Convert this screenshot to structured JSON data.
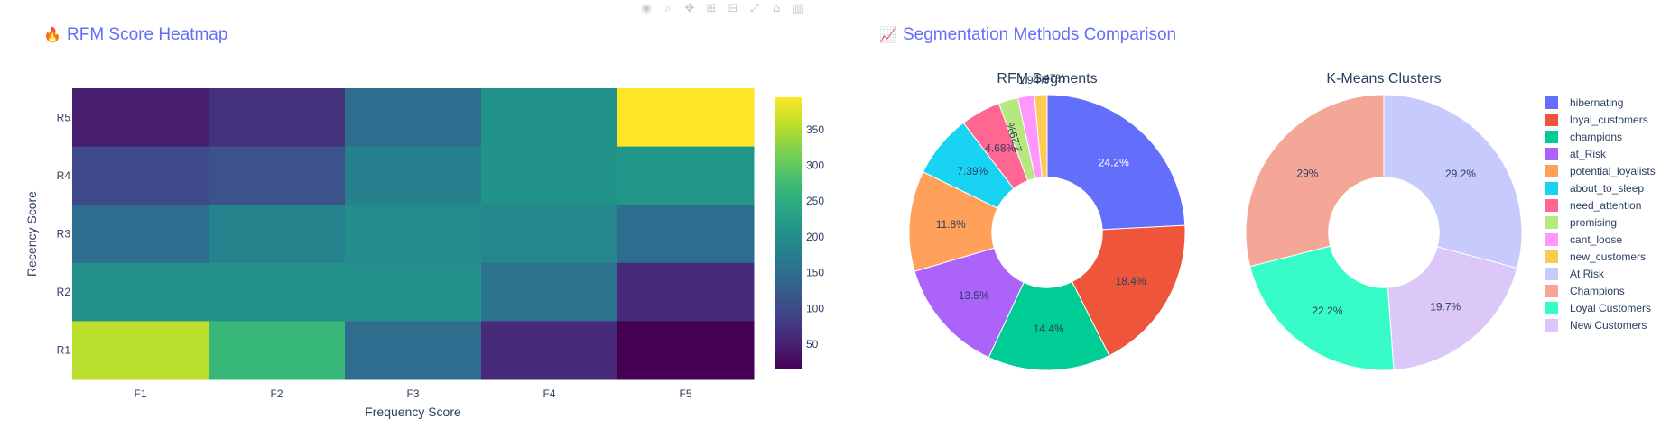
{
  "toolbar": {
    "icons": [
      "camera-icon",
      "zoom-icon",
      "pan-icon",
      "zoom-in-icon",
      "zoom-out-icon",
      "autoscale-icon",
      "home-icon",
      "plotly-logo-icon"
    ]
  },
  "left_panel": {
    "emoji": "🔥",
    "title": "RFM Score Heatmap"
  },
  "right_panel": {
    "emoji": "📈",
    "title": "Segmentation Methods Comparison"
  },
  "chart_data": [
    {
      "type": "heatmap",
      "title": "",
      "xlabel": "Frequency Score",
      "ylabel": "Recency Score",
      "x": [
        "F1",
        "F2",
        "F3",
        "F4",
        "F5"
      ],
      "y": [
        "R5",
        "R4",
        "R3",
        "R2",
        "R1"
      ],
      "z": [
        [
          45,
          70,
          150,
          210,
          395
        ],
        [
          100,
          110,
          180,
          210,
          215
        ],
        [
          150,
          185,
          200,
          190,
          150
        ],
        [
          205,
          205,
          205,
          160,
          60
        ],
        [
          355,
          270,
          150,
          60,
          15
        ]
      ],
      "colorscale": "Viridis",
      "colorbar": {
        "ticks": [
          50,
          100,
          150,
          200,
          250,
          300,
          350
        ],
        "range": [
          15,
          395
        ]
      },
      "grid": false
    },
    {
      "type": "pie",
      "title": "RFM Segments",
      "hole": 0.4,
      "labels": [
        "hibernating",
        "loyal_customers",
        "champions",
        "at_Risk",
        "potential_loyalists",
        "about_to_sleep",
        "need_attention",
        "promising",
        "cant_loose",
        "new_customers"
      ],
      "values": [
        24.2,
        18.4,
        14.4,
        13.5,
        11.8,
        7.39,
        4.68,
        2.29,
        1.94,
        1.47
      ],
      "text": [
        "24.2%",
        "18.4%",
        "14.4%",
        "13.5%",
        "11.8%",
        "7.39%",
        "4.68%",
        "2.29%",
        "1.94%",
        "1.47%"
      ],
      "colors": [
        "#636efa",
        "#ef553b",
        "#00cc96",
        "#ab63fa",
        "#ffa15a",
        "#19d3f3",
        "#ff6692",
        "#b6e880",
        "#ff97ff",
        "#fecb52"
      ]
    },
    {
      "type": "pie",
      "title": "K-Means Clusters",
      "hole": 0.4,
      "labels": [
        "At Risk",
        "New Customers",
        "Loyal Customers",
        "Champions"
      ],
      "values": [
        29.2,
        19.7,
        22.2,
        29.0
      ],
      "text": [
        "29.2%",
        "19.7%",
        "22.2%",
        "29%"
      ],
      "colors": [
        "#c6cafd",
        "#dcc8f8",
        "#38fcc8",
        "#f5a797"
      ]
    }
  ],
  "legend": {
    "items": [
      {
        "label": "hibernating",
        "color": "#636efa"
      },
      {
        "label": "loyal_customers",
        "color": "#ef553b"
      },
      {
        "label": "champions",
        "color": "#00cc96"
      },
      {
        "label": "at_Risk",
        "color": "#ab63fa"
      },
      {
        "label": "potential_loyalists",
        "color": "#ffa15a"
      },
      {
        "label": "about_to_sleep",
        "color": "#19d3f3"
      },
      {
        "label": "need_attention",
        "color": "#ff6692"
      },
      {
        "label": "promising",
        "color": "#b6e880"
      },
      {
        "label": "cant_loose",
        "color": "#ff97ff"
      },
      {
        "label": "new_customers",
        "color": "#fecb52"
      },
      {
        "label": "At Risk",
        "color": "#c6cafd"
      },
      {
        "label": "Champions",
        "color": "#f5a797"
      },
      {
        "label": "Loyal Customers",
        "color": "#38fcc8"
      },
      {
        "label": "New Customers",
        "color": "#dcc8f8"
      }
    ]
  }
}
